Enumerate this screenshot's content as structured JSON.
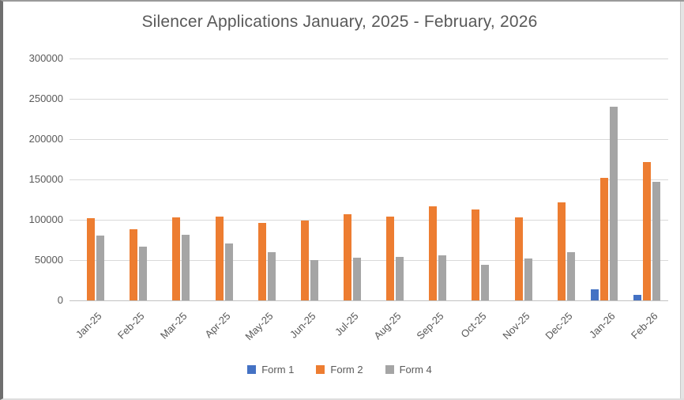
{
  "window": {
    "background": "#ffffff",
    "frame_border_color": "#9a9a9a"
  },
  "styles": {
    "title_color": "#595959",
    "tick_label_color": "#595959",
    "gridline_color": "#d9d9d9",
    "axis_line_color": "#c2c2c2"
  },
  "chart_data": {
    "type": "bar",
    "title": "Silencer Applications January, 2025 - February, 2026",
    "xlabel": "",
    "ylabel": "",
    "ylim": [
      0,
      300000
    ],
    "ytick_step": 50000,
    "ytick_labels": [
      "300000",
      "250000",
      "200000",
      "150000",
      "100000",
      "50000",
      "0"
    ],
    "grid": true,
    "legend_position": "bottom",
    "categories": [
      "Jan-25",
      "Feb-25",
      "Mar-25",
      "Apr-25",
      "May-25",
      "Jun-25",
      "Jul-25",
      "Aug-25",
      "Sep-25",
      "Oct-25",
      "Nov-25",
      "Dec-25",
      "Jan-26",
      "Feb-26"
    ],
    "series": [
      {
        "name": "Form 1",
        "color": "#4472C4",
        "values": [
          0,
          0,
          0,
          0,
          0,
          0,
          0,
          0,
          0,
          0,
          0,
          0,
          14000,
          7000
        ]
      },
      {
        "name": "Form 2",
        "color": "#ED7D31",
        "values": [
          102000,
          88000,
          103000,
          104000,
          96000,
          99000,
          107000,
          104000,
          117000,
          113000,
          103000,
          122000,
          152000,
          172000
        ]
      },
      {
        "name": "Form 4",
        "color": "#A5A5A5",
        "values": [
          80000,
          67000,
          81000,
          71000,
          60000,
          50000,
          53000,
          54000,
          56000,
          44000,
          52000,
          60000,
          240000,
          147000
        ]
      }
    ]
  }
}
